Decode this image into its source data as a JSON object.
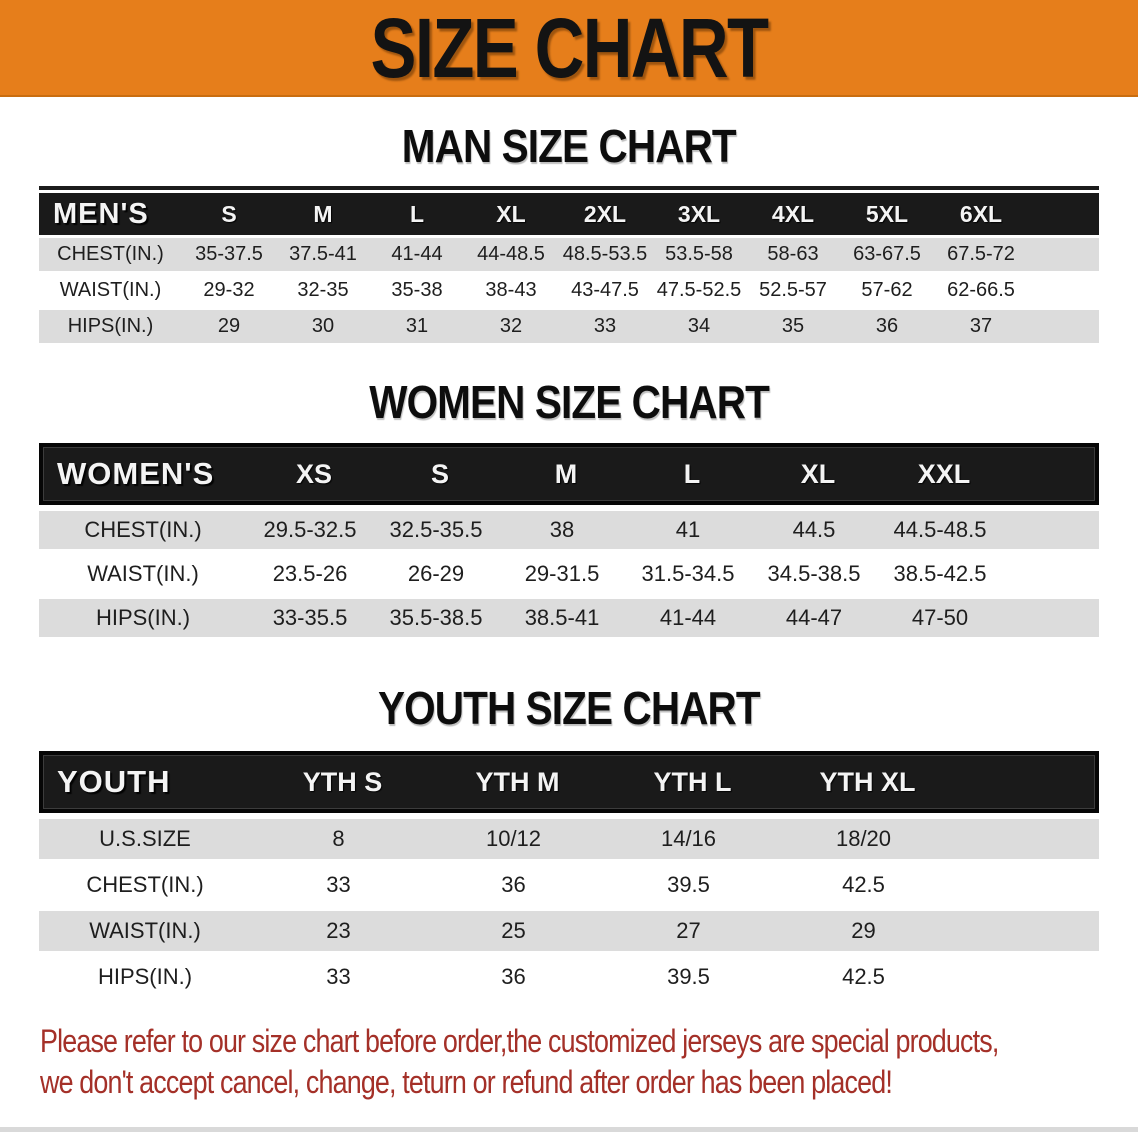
{
  "banner": {
    "title": "SIZE CHART"
  },
  "colors": {
    "banner_bg": "#E67E1B",
    "header_bar": "#1a1a1a",
    "row_gray": "#DCDCDC",
    "footer_red": "#A43028"
  },
  "sections": [
    {
      "heading": "MAN SIZE CHART",
      "group_label": "MEN'S",
      "sizes": [
        "S",
        "M",
        "L",
        "XL",
        "2XL",
        "3XL",
        "4XL",
        "5XL",
        "6XL"
      ],
      "rows": [
        {
          "label": "CHEST(IN.)",
          "values": [
            "35-37.5",
            "37.5-41",
            "41-44",
            "44-48.5",
            "48.5-53.5",
            "53.5-58",
            "58-63",
            "63-67.5",
            "67.5-72"
          ]
        },
        {
          "label": "WAIST(IN.)",
          "values": [
            "29-32",
            "32-35",
            "35-38",
            "38-43",
            "43-47.5",
            "47.5-52.5",
            "52.5-57",
            "57-62",
            "62-66.5"
          ]
        },
        {
          "label": "HIPS(IN.)",
          "values": [
            "29",
            "30",
            "31",
            "32",
            "33",
            "34",
            "35",
            "36",
            "37"
          ]
        }
      ]
    },
    {
      "heading": "WOMEN SIZE CHART",
      "group_label": "WOMEN'S",
      "sizes": [
        "XS",
        "S",
        "M",
        "L",
        "XL",
        "XXL"
      ],
      "rows": [
        {
          "label": "CHEST(IN.)",
          "values": [
            "29.5-32.5",
            "32.5-35.5",
            "38",
            "41",
            "44.5",
            "44.5-48.5"
          ]
        },
        {
          "label": "WAIST(IN.)",
          "values": [
            "23.5-26",
            "26-29",
            "29-31.5",
            "31.5-34.5",
            "34.5-38.5",
            "38.5-42.5"
          ]
        },
        {
          "label": "HIPS(IN.)",
          "values": [
            "33-35.5",
            "35.5-38.5",
            "38.5-41",
            "41-44",
            "44-47",
            "47-50"
          ]
        }
      ]
    },
    {
      "heading": "YOUTH SIZE CHART",
      "group_label": "YOUTH",
      "sizes": [
        "YTH S",
        "YTH M",
        "YTH L",
        "YTH XL"
      ],
      "rows": [
        {
          "label": "U.S.SIZE",
          "values": [
            "8",
            "10/12",
            "14/16",
            "18/20"
          ]
        },
        {
          "label": "CHEST(IN.)",
          "values": [
            "33",
            "36",
            "39.5",
            "42.5"
          ]
        },
        {
          "label": "WAIST(IN.)",
          "values": [
            "23",
            "25",
            "27",
            "29"
          ]
        },
        {
          "label": "HIPS(IN.)",
          "values": [
            "33",
            "36",
            "39.5",
            "42.5"
          ]
        }
      ]
    }
  ],
  "footer": {
    "line1": "Please refer to our size chart before order,the customized jerseys are special products,",
    "line2": "we don't accept cancel, change, teturn or refund after order has been placed!"
  }
}
